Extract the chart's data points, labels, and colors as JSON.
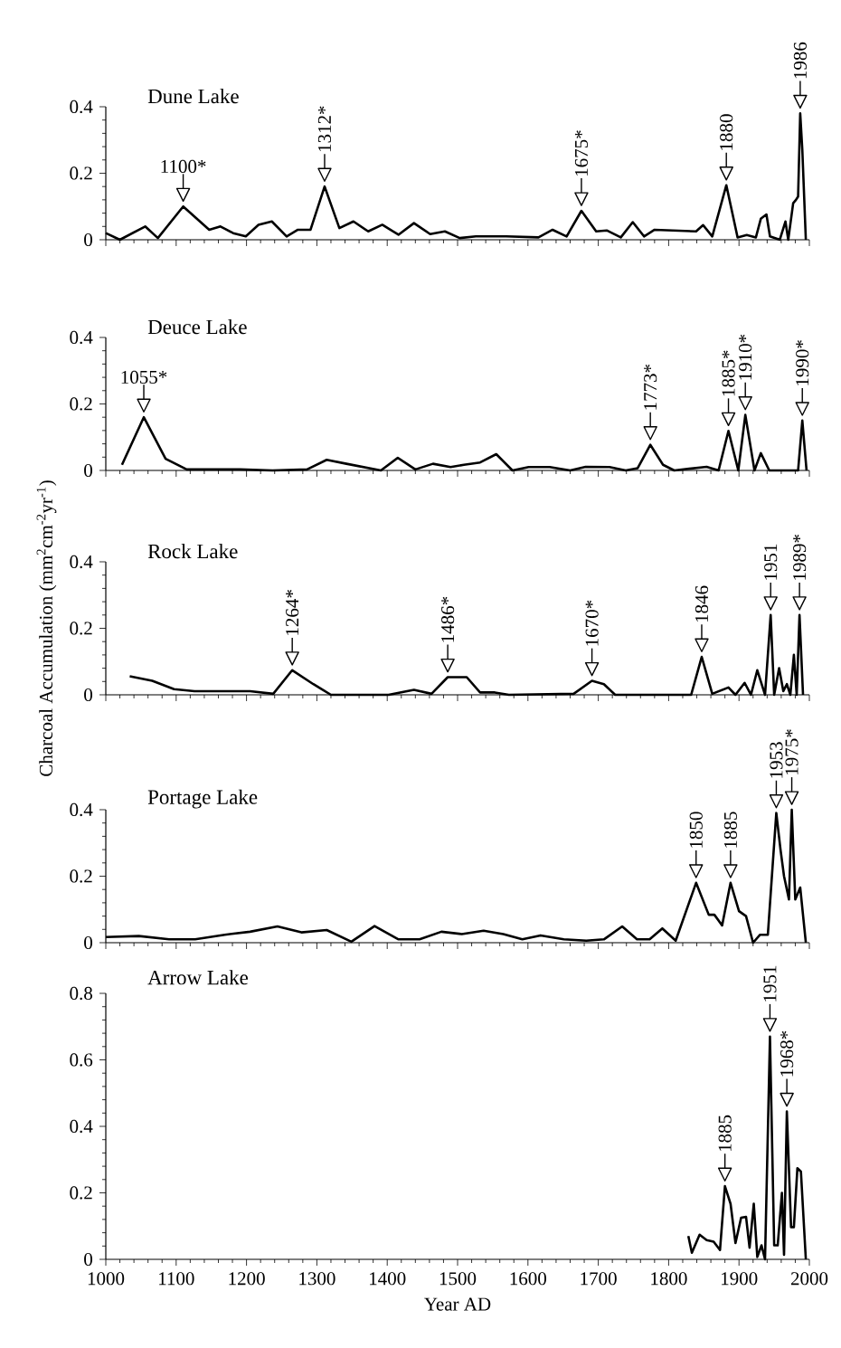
{
  "chart_data": [
    {
      "type": "line",
      "title": "Dune Lake",
      "color": "#000000",
      "xlim": [
        1000,
        2000
      ],
      "xticks": [
        1000,
        1100,
        1200,
        1300,
        1400,
        1500,
        1600,
        1700,
        1800,
        1900,
        2000
      ],
      "ylim": [
        0,
        0.4
      ],
      "yticks": [
        0,
        0.2,
        0.4
      ],
      "tick_labels": "y",
      "x": [
        1000,
        1020,
        1056,
        1074,
        1110,
        1147,
        1163,
        1181,
        1199,
        1217,
        1236,
        1257,
        1273,
        1291,
        1311,
        1332,
        1352,
        1373,
        1393,
        1416,
        1438,
        1461,
        1482,
        1503,
        1526,
        1569,
        1615,
        1635,
        1655,
        1676,
        1697,
        1712,
        1732,
        1749,
        1765,
        1780,
        1839,
        1849,
        1862,
        1882,
        1898,
        1911,
        1924,
        1931,
        1939,
        1944,
        1958,
        1966,
        1970,
        1977,
        1981,
        1984,
        1987,
        1990,
        1995
      ],
      "values": [
        0.02,
        0,
        0.04,
        0.005,
        0.1,
        0.03,
        0.04,
        0.02,
        0.01,
        0.045,
        0.055,
        0.01,
        0.03,
        0.03,
        0.16,
        0.035,
        0.055,
        0.025,
        0.045,
        0.015,
        0.05,
        0.017,
        0.025,
        0.005,
        0.01,
        0.01,
        0.007,
        0.03,
        0.01,
        0.087,
        0.025,
        0.028,
        0.007,
        0.053,
        0.01,
        0.03,
        0.025,
        0.044,
        0.01,
        0.164,
        0.007,
        0.014,
        0.007,
        0.063,
        0.076,
        0.01,
        0,
        0.055,
        0,
        0.11,
        0.12,
        0.13,
        0.38,
        0.27,
        0
      ],
      "annotations": [
        {
          "text": "1100*",
          "x": 1110,
          "y": 0.1
        },
        {
          "text": "1312*",
          "x": 1311,
          "y": 0.16
        },
        {
          "text": "1675*",
          "x": 1676,
          "y": 0.087
        },
        {
          "text": "1880",
          "x": 1882,
          "y": 0.164
        },
        {
          "text": "1986",
          "x": 1987,
          "y": 0.38
        }
      ]
    },
    {
      "type": "line",
      "title": "Deuce Lake",
      "color": "#000000",
      "xlim": [
        1000,
        2000
      ],
      "xticks": [
        1000,
        1100,
        1200,
        1300,
        1400,
        1500,
        1600,
        1700,
        1800,
        1900,
        2000
      ],
      "ylim": [
        0,
        0.4
      ],
      "yticks": [
        0,
        0.2,
        0.4
      ],
      "tick_labels": "y",
      "x": [
        1023,
        1054,
        1085,
        1115,
        1145,
        1191,
        1237,
        1286,
        1314,
        1342,
        1391,
        1415,
        1440,
        1465,
        1490,
        1509,
        1532,
        1555,
        1578,
        1601,
        1631,
        1660,
        1682,
        1716,
        1739,
        1756,
        1774,
        1792,
        1808,
        1854,
        1871,
        1885,
        1899,
        1909,
        1922,
        1931,
        1943,
        1984,
        1990,
        1996
      ],
      "values": [
        0.017,
        0.16,
        0.035,
        0.003,
        0.003,
        0.003,
        0,
        0.003,
        0.032,
        0.02,
        0,
        0.038,
        0.003,
        0.02,
        0.01,
        0.017,
        0.024,
        0.049,
        0,
        0.01,
        0.01,
        0,
        0.011,
        0.01,
        0,
        0.007,
        0.077,
        0.017,
        0,
        0.011,
        0,
        0.119,
        0,
        0.167,
        0,
        0.052,
        0,
        0,
        0.15,
        0
      ],
      "annotations": [
        {
          "text": "1055*",
          "x": 1054,
          "y": 0.16
        },
        {
          "text": "1773*",
          "x": 1774,
          "y": 0.077
        },
        {
          "text": "1885*",
          "x": 1885,
          "y": 0.119
        },
        {
          "text": "1910*",
          "x": 1909,
          "y": 0.167
        },
        {
          "text": "1990*",
          "x": 1990,
          "y": 0.15
        }
      ]
    },
    {
      "type": "line",
      "title": "Rock Lake",
      "ylabel": "Charcoal Accumulation (mm$^{2}$cm$^{-2}$yr$^{-1}$)",
      "color": "#000000",
      "xlim": [
        1000,
        2000
      ],
      "xticks": [
        1000,
        1100,
        1200,
        1300,
        1400,
        1500,
        1600,
        1700,
        1800,
        1900,
        2000
      ],
      "ylim": [
        0,
        0.4
      ],
      "yticks": [
        0,
        0.2,
        0.4
      ],
      "tick_labels": "y",
      "x": [
        1034,
        1066,
        1097,
        1126,
        1205,
        1238,
        1265,
        1295,
        1320,
        1402,
        1438,
        1463,
        1486,
        1513,
        1532,
        1553,
        1573,
        1665,
        1691,
        1708,
        1724,
        1832,
        1847,
        1862,
        1885,
        1895,
        1908,
        1917,
        1926,
        1937,
        1945,
        1950,
        1957,
        1963,
        1968,
        1973,
        1978,
        1982,
        1986,
        1991
      ],
      "values": [
        0.056,
        0.042,
        0.017,
        0.011,
        0.011,
        0.003,
        0.074,
        0.032,
        0,
        0,
        0.015,
        0.003,
        0.053,
        0.053,
        0.007,
        0.007,
        0,
        0.003,
        0.042,
        0.032,
        0,
        0,
        0.114,
        0.003,
        0.022,
        0,
        0.036,
        0,
        0.074,
        0,
        0.24,
        0,
        0.08,
        0.011,
        0.032,
        0,
        0.12,
        0,
        0.24,
        0
      ],
      "annotations": [
        {
          "text": "1264*",
          "x": 1265,
          "y": 0.074
        },
        {
          "text": "1486*",
          "x": 1486,
          "y": 0.053
        },
        {
          "text": "1670*",
          "x": 1691,
          "y": 0.042
        },
        {
          "text": "1846",
          "x": 1847,
          "y": 0.114
        },
        {
          "text": "1951",
          "x": 1945,
          "y": 0.24
        },
        {
          "text": "1989*",
          "x": 1986,
          "y": 0.24
        }
      ]
    },
    {
      "type": "line",
      "title": "Portage Lake",
      "color": "#000000",
      "xlim": [
        1000,
        2000
      ],
      "xticks": [
        1000,
        1100,
        1200,
        1300,
        1400,
        1500,
        1600,
        1700,
        1800,
        1900,
        2000
      ],
      "ylim": [
        0,
        0.4
      ],
      "yticks": [
        0,
        0.2,
        0.4
      ],
      "tick_labels": "y",
      "x": [
        1000,
        1047,
        1090,
        1127,
        1169,
        1205,
        1244,
        1278,
        1314,
        1349,
        1382,
        1416,
        1446,
        1477,
        1506,
        1537,
        1565,
        1592,
        1618,
        1651,
        1683,
        1708,
        1734,
        1755,
        1773,
        1791,
        1810,
        1839,
        1857,
        1865,
        1876,
        1888,
        1900,
        1910,
        1920,
        1930,
        1941,
        1953,
        1959,
        1964,
        1971,
        1975,
        1980,
        1987,
        1995
      ],
      "values": [
        0.017,
        0.02,
        0.01,
        0.01,
        0.024,
        0.033,
        0.049,
        0.031,
        0.038,
        0.003,
        0.05,
        0.01,
        0.01,
        0.033,
        0.026,
        0.036,
        0.026,
        0.01,
        0.022,
        0.01,
        0.006,
        0.01,
        0.049,
        0.01,
        0.01,
        0.043,
        0.006,
        0.18,
        0.084,
        0.084,
        0.052,
        0.18,
        0.095,
        0.08,
        0,
        0.024,
        0.024,
        0.39,
        0.28,
        0.2,
        0.13,
        0.4,
        0.13,
        0.166,
        0
      ],
      "annotations": [
        {
          "text": "1850",
          "x": 1839,
          "y": 0.18
        },
        {
          "text": "1885",
          "x": 1888,
          "y": 0.18
        },
        {
          "text": "1953",
          "x": 1953,
          "y": 0.39
        },
        {
          "text": "1975*",
          "x": 1975,
          "y": 0.4
        }
      ]
    },
    {
      "type": "line",
      "title": "Arrow Lake",
      "xlabel": "Year AD",
      "color": "#000000",
      "xlim": [
        1000,
        2000
      ],
      "xticks": [
        1000,
        1100,
        1200,
        1300,
        1400,
        1500,
        1600,
        1700,
        1800,
        1900,
        2000
      ],
      "ylim": [
        0,
        0.8
      ],
      "yticks": [
        0,
        0.2,
        0.4,
        0.6,
        0.8
      ],
      "x": [
        1828,
        1833,
        1844,
        1854,
        1864,
        1873,
        1880,
        1888,
        1895,
        1903,
        1910,
        1915,
        1921,
        1926,
        1932,
        1937,
        1944,
        1950,
        1955,
        1961,
        1964,
        1968,
        1974,
        1978,
        1983,
        1988,
        1995
      ],
      "values": [
        0.07,
        0.02,
        0.074,
        0.058,
        0.053,
        0.028,
        0.22,
        0.167,
        0.049,
        0.125,
        0.128,
        0.035,
        0.167,
        0.007,
        0.042,
        0,
        0.67,
        0.042,
        0.042,
        0.2,
        0.014,
        0.445,
        0.097,
        0.097,
        0.274,
        0.264,
        0
      ],
      "annotations": [
        {
          "text": "1885",
          "x": 1880,
          "y": 0.22
        },
        {
          "text": "1951",
          "x": 1944,
          "y": 0.67
        },
        {
          "text": "1968*",
          "x": 1968,
          "y": 0.445
        }
      ]
    }
  ]
}
